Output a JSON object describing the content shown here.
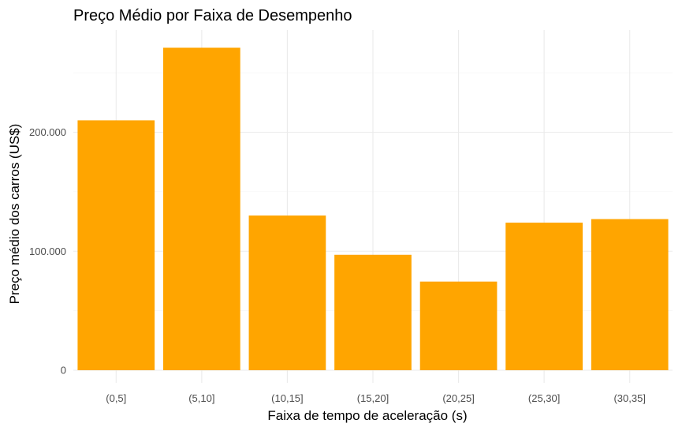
{
  "chart_data": {
    "type": "bar",
    "title": "Preço Médio por Faixa de Desempenho",
    "xlabel": "Faixa de tempo de aceleração (s)",
    "ylabel": "Preço médio dos carros (US$)",
    "categories": [
      "(0,5]",
      "(5,10]",
      "(10,15]",
      "(15,20]",
      "(20,25]",
      "(25,30]",
      "(30,35]"
    ],
    "values": [
      210000,
      271000,
      130000,
      97000,
      74500,
      124000,
      127000
    ],
    "ylim": [
      0,
      285000
    ],
    "y_ticks": [
      0,
      100000,
      200000
    ],
    "y_tick_labels": [
      "0",
      "100.000",
      "200.000"
    ],
    "bar_color": "#FFA500",
    "grid": true,
    "legend": "none"
  }
}
